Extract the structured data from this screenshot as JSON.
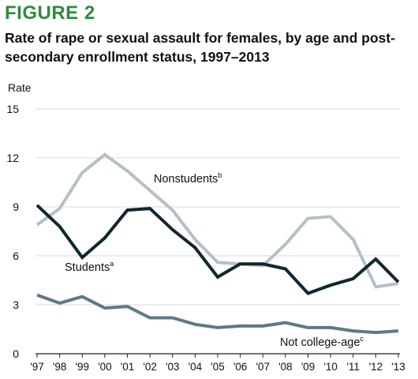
{
  "figure_label": "FIGURE 2",
  "title": "Rate of rape or sexual assault for females, by age and post-secondary enrollment status, 1997–2013",
  "colors": {
    "figure_label": "#2e8b3d",
    "students": "#10272e",
    "nonstudents": "#b5c0c5",
    "not_college_age": "#5c7a85",
    "axis": "#222222",
    "grid": "#d9d9d9"
  },
  "chart_data": {
    "type": "line",
    "ylabel": "Rate",
    "xlabel": "",
    "ylim": [
      0,
      15
    ],
    "yticks": [
      "0",
      "3",
      "6",
      "9",
      "12",
      "15"
    ],
    "categories": [
      "'97",
      "'98",
      "'99",
      "'00",
      "'01",
      "'02",
      "'03",
      "'04",
      "'05",
      "'06",
      "'07",
      "'08",
      "'09",
      "'10",
      "'11",
      "'12",
      "'13"
    ],
    "grid": "horizontal",
    "legend": "direct labels",
    "series": [
      {
        "name": "Nonstudents",
        "superscript": "b",
        "color_key": "nonstudents",
        "values": [
          7.9,
          8.9,
          11.1,
          12.2,
          11.2,
          10.0,
          8.8,
          7.0,
          5.6,
          5.5,
          5.4,
          6.7,
          8.3,
          8.4,
          7.0,
          4.1,
          4.3
        ]
      },
      {
        "name": "Students",
        "superscript": "a",
        "color_key": "students",
        "values": [
          9.1,
          7.8,
          5.9,
          7.1,
          8.8,
          8.9,
          7.6,
          6.5,
          4.7,
          5.5,
          5.5,
          5.2,
          3.7,
          4.2,
          4.6,
          5.8,
          4.4
        ]
      },
      {
        "name": "Not college-age",
        "superscript": "c",
        "color_key": "not_college_age",
        "values": [
          3.6,
          3.1,
          3.5,
          2.8,
          2.9,
          2.2,
          2.2,
          1.8,
          1.6,
          1.7,
          1.7,
          1.9,
          1.6,
          1.6,
          1.4,
          1.3,
          1.4
        ]
      }
    ]
  }
}
